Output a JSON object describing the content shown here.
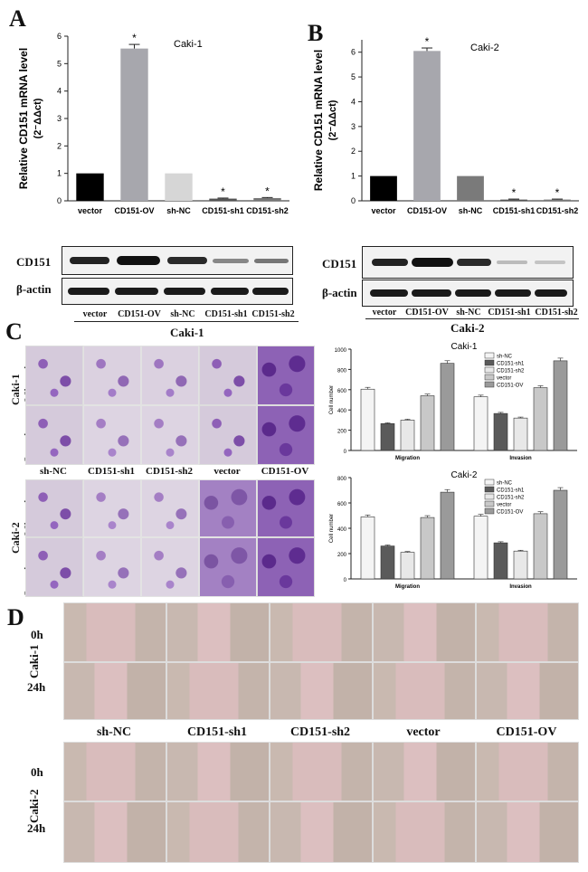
{
  "panel_letters": {
    "a": "A",
    "b": "B",
    "c": "C",
    "d": "D"
  },
  "chart_data": [
    {
      "type": "bar",
      "title": "Caki-1",
      "ylabel": "Relative CD151 mRNA level",
      "ylabel2": "(2⁻ΔΔct)",
      "categories": [
        "vector",
        "CD151-OV",
        "sh-NC",
        "CD151-sh1",
        "CD151-sh2"
      ],
      "values": [
        1.0,
        5.55,
        1.0,
        0.08,
        0.1
      ],
      "errors": [
        0,
        0.15,
        0,
        0.02,
        0.02
      ],
      "significant": [
        "",
        "*",
        "",
        "*",
        "*"
      ],
      "ylim": [
        0,
        6
      ],
      "yticks": [
        0,
        1,
        2,
        3,
        4,
        5,
        6
      ],
      "colors": [
        "#000000",
        "#a7a7ad",
        "#d6d6d6",
        "#555555",
        "#777777"
      ]
    },
    {
      "type": "bar",
      "title": "Caki-2",
      "ylabel": "Relative CD151 mRNA level",
      "ylabel2": "(2⁻ΔΔct)",
      "categories": [
        "vector",
        "CD151-OV",
        "sh-NC",
        "CD151-sh1",
        "CD151-sh2"
      ],
      "values": [
        1.0,
        6.05,
        1.0,
        0.05,
        0.05
      ],
      "errors": [
        0,
        0.12,
        0,
        0.02,
        0.02
      ],
      "significant": [
        "",
        "*",
        "",
        "*",
        "*"
      ],
      "ylim": [
        0,
        6.5
      ],
      "yticks": [
        0,
        1,
        2,
        3,
        4,
        5,
        6
      ],
      "colors": [
        "#000000",
        "#a7a7ad",
        "#7a7a7a",
        "#555555",
        "#777777"
      ]
    },
    {
      "type": "bar",
      "title": "Caki-1",
      "ylabel": "Cell number",
      "categories": [
        "Migration",
        "Invasion"
      ],
      "series": [
        {
          "name": "sh-NC",
          "values": [
            605,
            530
          ]
        },
        {
          "name": "CD151-sh1",
          "values": [
            265,
            365
          ]
        },
        {
          "name": "CD151-sh2",
          "values": [
            300,
            320
          ]
        },
        {
          "name": "vector",
          "values": [
            540,
            620
          ]
        },
        {
          "name": "CD151-OV",
          "values": [
            860,
            885
          ]
        }
      ],
      "ylim": [
        0,
        1000
      ],
      "yticks": [
        0,
        200,
        400,
        600,
        800,
        1000
      ],
      "legend": "top-right"
    },
    {
      "type": "bar",
      "title": "Caki-2",
      "ylabel": "Cell number",
      "categories": [
        "Migration",
        "Invasion"
      ],
      "series": [
        {
          "name": "sh-NC",
          "values": [
            490,
            495
          ]
        },
        {
          "name": "CD151-sh1",
          "values": [
            260,
            285
          ]
        },
        {
          "name": "CD151-sh2",
          "values": [
            210,
            220
          ]
        },
        {
          "name": "vector",
          "values": [
            485,
            515
          ]
        },
        {
          "name": "CD151-OV",
          "values": [
            685,
            700
          ]
        }
      ],
      "ylim": [
        0,
        800
      ],
      "yticks": [
        0,
        200,
        400,
        600,
        800
      ],
      "legend": "top-right"
    }
  ],
  "blots": {
    "left": {
      "cd151": "CD151",
      "actin": "β-actin",
      "lanes": [
        "vector",
        "CD151-OV",
        "sh-NC",
        "CD151-sh1",
        "CD151-sh2"
      ],
      "cell": "Caki-1"
    },
    "right": {
      "cd151": "CD151",
      "actin": "β-actin",
      "lanes": [
        "vector",
        "CD151-OV",
        "sh-NC",
        "CD151-sh1",
        "CD151-sh2"
      ],
      "cell": "Caki-2"
    }
  },
  "panelC": {
    "caki1": "Caki-1",
    "caki2": "Caki-2",
    "migration": "Migration",
    "invasion": "Invasion",
    "cols": [
      "sh-NC",
      "CD151-sh1",
      "CD151-sh2",
      "vector",
      "CD151-OV"
    ]
  },
  "panelD": {
    "caki1": "Caki-1",
    "caki2": "Caki-2",
    "t0": "0h",
    "t24": "24h",
    "cols": [
      "sh-NC",
      "CD151-sh1",
      "CD151-sh2",
      "vector",
      "CD151-OV"
    ]
  }
}
